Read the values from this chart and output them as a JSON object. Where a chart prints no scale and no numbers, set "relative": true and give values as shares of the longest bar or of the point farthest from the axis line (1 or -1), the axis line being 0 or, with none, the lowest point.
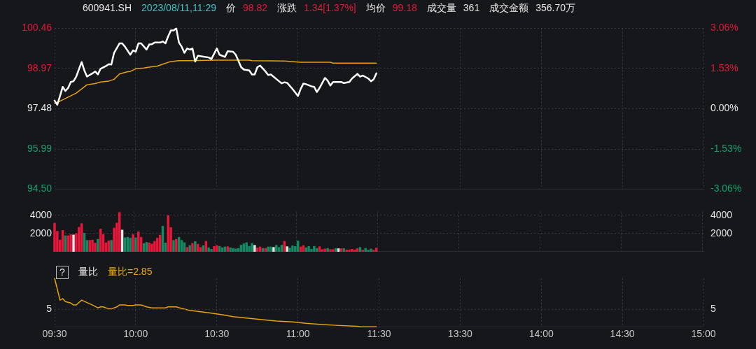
{
  "chart_data": [
    {
      "type": "line",
      "title": "600941.SH",
      "annotations": [
        "2023/08/11,11:29",
        "价 98.82",
        "涨跌 1.34[1.37%]",
        "均价 99.18",
        "成交量 361",
        "成交金额 356.70万"
      ],
      "categories": [
        null,
        null,
        null,
        null,
        null,
        null,
        null,
        null,
        null,
        null,
        null,
        null,
        null,
        null,
        null,
        null,
        null,
        null,
        null,
        null,
        null,
        null,
        null,
        null,
        null,
        null,
        null,
        null,
        null,
        null,
        null,
        null,
        null,
        null,
        null,
        null,
        null,
        null,
        null,
        null,
        null,
        null,
        null,
        null,
        null,
        null,
        null,
        null,
        null,
        null,
        null,
        null,
        null,
        null,
        null,
        null,
        null,
        null,
        null,
        null,
        null,
        null,
        null,
        null,
        null,
        null,
        null,
        null,
        null,
        null,
        null,
        null,
        null,
        null,
        null,
        null,
        null,
        null,
        null,
        null,
        null,
        null,
        null,
        null,
        null,
        null,
        null,
        null,
        null,
        null,
        null,
        null,
        null,
        null,
        null,
        null,
        null,
        null,
        null,
        null,
        null,
        null,
        null,
        null,
        null,
        null,
        null,
        null,
        null,
        null,
        null,
        null,
        null,
        null,
        null,
        null,
        null,
        null,
        null,
        null,
        null,
        null,
        null,
        null,
        null,
        null,
        null,
        null,
        null,
        null,
        null,
        null,
        null,
        null,
        null,
        null,
        null,
        null,
        null,
        null,
        null,
        null,
        null,
        null,
        null,
        null,
        null,
        null,
        null,
        null,
        null,
        null,
        null,
        null,
        null,
        null,
        null,
        null,
        null,
        null,
        null,
        null,
        null,
        null,
        null,
        null,
        null,
        null,
        null,
        null,
        null,
        null,
        null,
        null,
        null,
        null,
        null,
        null,
        null,
        null,
        null,
        null,
        null,
        null,
        null,
        null,
        null,
        null,
        null,
        null,
        null,
        null,
        null,
        null,
        null,
        null,
        null,
        null,
        null,
        null,
        null,
        null,
        null,
        null,
        null,
        null,
        null,
        null,
        null,
        null,
        null,
        null,
        null,
        null,
        null,
        null,
        null,
        null,
        null,
        null,
        null,
        null,
        null,
        null,
        null,
        null,
        null,
        null,
        null,
        null,
        null,
        null,
        null,
        null,
        null,
        null,
        null,
        null,
        null,
        null,
        null
      ],
      "ylim": [
        94.5,
        100.46
      ],
      "yticks": [
        {
          "value": 94.5,
          "label": "94.50"
        },
        95.99,
        97.48,
        98.97,
        100.46
      ],
      "y2lim": [
        -3.06,
        3.06
      ],
      "y2ticks": [
        {
          "value": -3.06,
          "label": "-3.06%"
        },
        {
          "value": -1.53,
          "label": "-1.53%"
        },
        {
          "value": 0,
          "label": "0.00%"
        },
        {
          "value": 1.53,
          "label": "1.53%"
        },
        {
          "value": 3.06,
          "label": "3.06%"
        }
      ],
      "tick_labels": "y",
      "grid": true,
      "marker": "none",
      "line_style": "solid",
      "series": [
        {
          "color": "#ffffff",
          "values": [
            97.78,
            97.63,
            97.95,
            98.29,
            98.14,
            98.25,
            98.47,
            98.5,
            98.67,
            null,
            99.21,
            98.9,
            98.67,
            null,
            98.79,
            98.86,
            98.75,
            98.96,
            null,
            99.06,
            99.13,
            99.12,
            99.55,
            null,
            99.9,
            99.9,
            99.78,
            null,
            99.48,
            99.64,
            99.59,
            99.9,
            99.9,
            null,
            99.67,
            99.86,
            99.87,
            99.93,
            null,
            99.93,
            99.97,
            99.9,
            100.16,
            100.38,
            100.38,
            100.45,
            99.93,
            99.78,
            99.55,
            99.71,
            99.67,
            99.71,
            99.23,
            99.44,
            null,
            99.41,
            null,
            99.38,
            99.32,
            null,
            99.71,
            99.48,
            null,
            99.4,
            99.61,
            null,
            99.59,
            99.48,
            null,
            99.02,
            98.93,
            null,
            98.9,
            98.75,
            98.75,
            99.02,
            99.08,
            null,
            98.86,
            98.73,
            98.75,
            null,
            null,
            98.5,
            98.42,
            98.46,
            98.44,
            null,
            98.21,
            null,
            97.95,
            98.21,
            98.41,
            98.39,
            null,
            98.31,
            98.29,
            98.1,
            98.25,
            null,
            98.62,
            98.52,
            98.34,
            98.47,
            null,
            null,
            98.47,
            98.43,
            null,
            98.47,
            98.6,
            null,
            98.77,
            98.67,
            98.71,
            null,
            98.6,
            98.5,
            98.57,
            98.79,
            null,
            null,
            null,
            null,
            null,
            null,
            null,
            null,
            null,
            null,
            null,
            null,
            null,
            null,
            null,
            null,
            null,
            null,
            null,
            null,
            null,
            null,
            null,
            null,
            null,
            null,
            null,
            null,
            null,
            null,
            null,
            null,
            null,
            null,
            null,
            null,
            null,
            null,
            null,
            null,
            null,
            null,
            null,
            null,
            null,
            null,
            null,
            null,
            null,
            null,
            null,
            null,
            null,
            null,
            null,
            null,
            null,
            null,
            null,
            null,
            null,
            null,
            null,
            null,
            null,
            null,
            null,
            null,
            null,
            null,
            null,
            null,
            null,
            null,
            null,
            null,
            null,
            null,
            null,
            null,
            null,
            null,
            null,
            null,
            null,
            null,
            null,
            null,
            null,
            null,
            null,
            null,
            null,
            null,
            null,
            null,
            null,
            null,
            null,
            null,
            null,
            null,
            null,
            null,
            null,
            null,
            null,
            null,
            null,
            null,
            null,
            null,
            null,
            null,
            null,
            null,
            null,
            null,
            null,
            null,
            null
          ]
        },
        {
          "color": "#e9a20c",
          "values": [
            97.68,
            null,
            97.76,
            null,
            null,
            97.91,
            null,
            null,
            98.06,
            null,
            null,
            98.29,
            98.37,
            null,
            null,
            98.41,
            null,
            98.47,
            null,
            null,
            98.5,
            null,
            98.57,
            null,
            98.77,
            null,
            null,
            98.85,
            98.86,
            null,
            98.96,
            null,
            null,
            98.99,
            null,
            99.02,
            null,
            null,
            99.06,
            null,
            99.13,
            null,
            null,
            99.23,
            null,
            null,
            99.26,
            null,
            null,
            null,
            99.26,
            null,
            null,
            null,
            null,
            null,
            null,
            null,
            null,
            99.28,
            null,
            null,
            null,
            null,
            null,
            null,
            null,
            null,
            null,
            null,
            null,
            null,
            99.28,
            99.26,
            null,
            null,
            null,
            null,
            null,
            null,
            null,
            null,
            null,
            null,
            null,
            99.25,
            null,
            null,
            null,
            null,
            null,
            99.2,
            null,
            null,
            null,
            null,
            null,
            null,
            null,
            null,
            null,
            null,
            99.2,
            99.17,
            null,
            null,
            null,
            null,
            null,
            null,
            null,
            null,
            null,
            null,
            null,
            null,
            null,
            null,
            null,
            99.17,
            null,
            null,
            null,
            null,
            null,
            null,
            null,
            null,
            null,
            null,
            null,
            null,
            null,
            null,
            null,
            null,
            null,
            null,
            null,
            null,
            null,
            null,
            null,
            null,
            null,
            null,
            null,
            null,
            null,
            null,
            null,
            null,
            null,
            null,
            null,
            null,
            null,
            null,
            null,
            null,
            null,
            null,
            null,
            null,
            null,
            null,
            null,
            null,
            null,
            null,
            null,
            null,
            null,
            null,
            null,
            null,
            null,
            null,
            null,
            null,
            null,
            null,
            null,
            null,
            null,
            null,
            null,
            null,
            null,
            null,
            null,
            null,
            null,
            null,
            null,
            null,
            null,
            null,
            null,
            null,
            null,
            null,
            null,
            null,
            null,
            null,
            null,
            null,
            null,
            null,
            null,
            null,
            null,
            null,
            null,
            null,
            null,
            null,
            null,
            null,
            null,
            null,
            null,
            null,
            null,
            null,
            null,
            null,
            null,
            null,
            null,
            null,
            null,
            null,
            null,
            null,
            null,
            null,
            null,
            null,
            null
          ]
        }
      ]
    },
    {
      "type": "bar",
      "categories": [
        null,
        null,
        null,
        null,
        null,
        null,
        null,
        null,
        null,
        null,
        null,
        null,
        null,
        null,
        null,
        null,
        null,
        null,
        null,
        null,
        null,
        null,
        null,
        null,
        null,
        null,
        null,
        null,
        null,
        null,
        null,
        null,
        null,
        null,
        null,
        null,
        null,
        null,
        null,
        null,
        null,
        null,
        null,
        null,
        null,
        null,
        null,
        null,
        null,
        null,
        null,
        null,
        null,
        null,
        null,
        null,
        null,
        null,
        null,
        null,
        null,
        null,
        null,
        null,
        null,
        null,
        null,
        null,
        null,
        null,
        null,
        null,
        null,
        null,
        null,
        null,
        null,
        null,
        null,
        null,
        null,
        null,
        null,
        null,
        null,
        null,
        null,
        null,
        null,
        null,
        null,
        null,
        null,
        null,
        null,
        null,
        null,
        null,
        null,
        null,
        null,
        null,
        null,
        null,
        null,
        null,
        null,
        null,
        null,
        null,
        null,
        null,
        null,
        null,
        null,
        null,
        null,
        null,
        null,
        null,
        null,
        null,
        null,
        null,
        null,
        null,
        null,
        null,
        null,
        null,
        null,
        null,
        null,
        null,
        null,
        null,
        null,
        null,
        null,
        null,
        null,
        null,
        null,
        null,
        null,
        null,
        null,
        null,
        null,
        null,
        null,
        null,
        null,
        null,
        null,
        null,
        null,
        null,
        null,
        null,
        null,
        null,
        null,
        null,
        null,
        null,
        null,
        null,
        null,
        null,
        null,
        null,
        null,
        null,
        null,
        null,
        null,
        null,
        null,
        null,
        null,
        null,
        null,
        null,
        null,
        null,
        null,
        null,
        null,
        null,
        null,
        null,
        null,
        null,
        null,
        null,
        null,
        null,
        null,
        null,
        null,
        null,
        null,
        null,
        null,
        null,
        null,
        null,
        null,
        null,
        null,
        null,
        null,
        null,
        null,
        null,
        null,
        null,
        null,
        null,
        null,
        null,
        null,
        null,
        null,
        null,
        null,
        null,
        null,
        null,
        null,
        null,
        null,
        null,
        null,
        null,
        null,
        null,
        null,
        null,
        null
      ],
      "ylim": [
        0,
        4330
      ],
      "yticks": [
        2000,
        4000
      ],
      "y2lim": [
        0,
        4330
      ],
      "y2ticks": [
        2000,
        4000
      ],
      "tick_labels": "y",
      "grid": true,
      "values": [
        3130,
        2230,
        1270,
        2330,
        1740,
        1740,
        1860,
        1830,
        1980,
        2670,
        3080,
        2030,
        1230,
        1230,
        1270,
        930,
        1350,
        2480,
        1890,
        960,
        1180,
        1230,
        2590,
        3140,
        4310,
        2370,
        1520,
        1570,
        1470,
        1860,
        1520,
        2180,
        1570,
        880,
        1010,
        960,
        830,
        1130,
        1470,
        1810,
        2790,
        950,
        3970,
        2640,
        1230,
        1350,
        1570,
        1230,
        980,
        460,
        660,
        910,
        1100,
        810,
        460,
        660,
        1130,
        420,
        250,
        560,
        660,
        570,
        420,
        510,
        540,
        420,
        350,
        290,
        350,
        710,
        860,
        980,
        570,
        900,
        690,
        390,
        510,
        350,
        350,
        510,
        510,
        460,
        690,
        460,
        710,
        1120,
        540,
        390,
        630,
        560,
        1170,
        510,
        660,
        420,
        560,
        250,
        570,
        350,
        540,
        220,
        290,
        350,
        220,
        220,
        350,
        320,
        320,
        320,
        190,
        190,
        250,
        190,
        320,
        460,
        150,
        350,
        150,
        290,
        150,
        390,
        null,
        null,
        null,
        null,
        null,
        null,
        null,
        null,
        null,
        null,
        null,
        null,
        null,
        null,
        null,
        null,
        null,
        null,
        null,
        null,
        null,
        null,
        null,
        null,
        null,
        null,
        null,
        null,
        null,
        null,
        null,
        null,
        null,
        null,
        null,
        null,
        null,
        null,
        null,
        null,
        null,
        null,
        null,
        null,
        null,
        null,
        null,
        null,
        null,
        null,
        null,
        null,
        null,
        null,
        null,
        null,
        null,
        null,
        null,
        null,
        null,
        null,
        null,
        null,
        null,
        null,
        null,
        null,
        null,
        null,
        null,
        null,
        null,
        null,
        null,
        null,
        null,
        null,
        null,
        null,
        null,
        null,
        null,
        null,
        null,
        null,
        null,
        null,
        null,
        null,
        null,
        null,
        null,
        null,
        null,
        null,
        null,
        null,
        null,
        null,
        null,
        null,
        null,
        null,
        null,
        null,
        null,
        null,
        null,
        null,
        null,
        null,
        null,
        null,
        null,
        null,
        null,
        null,
        null,
        null,
        null
      ],
      "colors": [
        "#e8173a",
        "#e8173a",
        "#e8173a",
        "#e8173a",
        "#138a62",
        "#e8173a",
        "#e8173a",
        "#e6e6e6",
        "#e8173a",
        "#e8173a",
        "#e8173a",
        "#138a62",
        "#138a62",
        "#e8173a",
        "#e8173a",
        "#e8173a",
        "#138a62",
        "#e8173a",
        "#e8173a",
        "#e8173a",
        "#e8173a",
        "#138a62",
        "#e8173a",
        "#e8173a",
        "#e8173a",
        "#e6e6e6",
        "#138a62",
        "#138a62",
        "#138a62",
        "#e8173a",
        "#138a62",
        "#e8173a",
        "#e8173a",
        "#138a62",
        "#138a62",
        "#e8173a",
        "#e8173a",
        "#e8173a",
        "#e8173a",
        "#e8173a",
        "#138a62",
        "#138a62",
        "#e8173a",
        "#e8173a",
        "#138a62",
        "#e8173a",
        "#138a62",
        "#138a62",
        "#138a62",
        "#e8173a",
        "#138a62",
        "#e8173a",
        "#138a62",
        "#e8173a",
        "#e8173a",
        "#138a62",
        "#e8173a",
        "#138a62",
        "#138a62",
        "#e8173a",
        "#e8173a",
        "#138a62",
        "#138a62",
        "#138a62",
        "#e8173a",
        "#138a62",
        "#138a62",
        "#138a62",
        "#138a62",
        "#138a62",
        "#138a62",
        "#138a62",
        "#138a62",
        "#138a62",
        "#e6e6e6",
        "#e8173a",
        "#e8173a",
        "#138a62",
        "#e8173a",
        "#138a62",
        "#138a62",
        "#e6e6e6",
        "#138a62",
        "#138a62",
        "#138a62",
        "#e8173a",
        "#e6e6e6",
        "#138a62",
        "#138a62",
        "#138a62",
        "#138a62",
        "#e8173a",
        "#e8173a",
        "#138a62",
        "#138a62",
        "#138a62",
        "#138a62",
        "#138a62",
        "#e8173a",
        "#e8173a",
        "#e8173a",
        "#138a62",
        "#e8173a",
        "#e8173a",
        "#138a62",
        "#e6e6e6",
        "#e8173a",
        "#138a62",
        "#e8173a",
        "#e8173a",
        "#e8173a",
        "#e8173a",
        "#e8173a",
        "#138a62",
        "#e8173a",
        "#138a62",
        "#138a62",
        "#138a62",
        "#e8173a",
        "#e8173a",
        null,
        null,
        null,
        null,
        null,
        null,
        null,
        null,
        null,
        null,
        null,
        null,
        null,
        null,
        null,
        null,
        null,
        null,
        null,
        null,
        null,
        null,
        null,
        null,
        null,
        null,
        null,
        null,
        null,
        null,
        null,
        null,
        null,
        null,
        null,
        null,
        null,
        null,
        null,
        null,
        null,
        null,
        null,
        null,
        null,
        null,
        null,
        null,
        null,
        null,
        null,
        null,
        null,
        null,
        null,
        null,
        null,
        null,
        null,
        null,
        null,
        null,
        null,
        null,
        null,
        null,
        null,
        null,
        null,
        null,
        null,
        null,
        null,
        null,
        null,
        null,
        null,
        null,
        null,
        null,
        null,
        null,
        null,
        null,
        null,
        null,
        null,
        null,
        null,
        null,
        null,
        null,
        null,
        null,
        null,
        null,
        null,
        null,
        null,
        null,
        null,
        null,
        null,
        null,
        null,
        null,
        null,
        null,
        null,
        null,
        null,
        null,
        null,
        null,
        null,
        null,
        null,
        null,
        null,
        null,
        null
      ]
    },
    {
      "type": "line",
      "title": "量比",
      "annotations": [
        "?",
        "量比=2.85",
        "5",
        "5"
      ],
      "relative": true,
      "ref_lines": [
        {
          "axis": "y",
          "value": 0.36
        }
      ],
      "categories": [
        "09:30",
        null,
        null,
        null,
        null,
        null,
        null,
        null,
        null,
        null,
        null,
        null,
        null,
        null,
        null,
        null,
        null,
        null,
        null,
        null,
        null,
        null,
        null,
        null,
        null,
        null,
        null,
        null,
        null,
        null,
        "10:00",
        null,
        null,
        null,
        null,
        null,
        null,
        null,
        null,
        null,
        null,
        null,
        null,
        null,
        null,
        null,
        null,
        null,
        null,
        null,
        null,
        null,
        null,
        null,
        null,
        null,
        null,
        null,
        null,
        null,
        "10:30",
        null,
        null,
        null,
        null,
        null,
        null,
        null,
        null,
        null,
        null,
        null,
        null,
        null,
        null,
        null,
        null,
        null,
        null,
        null,
        null,
        null,
        null,
        null,
        null,
        null,
        null,
        null,
        null,
        null,
        "11:00",
        null,
        null,
        null,
        null,
        null,
        null,
        null,
        null,
        null,
        null,
        null,
        null,
        null,
        null,
        null,
        null,
        null,
        null,
        null,
        null,
        null,
        null,
        null,
        null,
        null,
        null,
        null,
        null,
        null,
        "11:30",
        null,
        null,
        null,
        null,
        null,
        null,
        null,
        null,
        null,
        null,
        null,
        null,
        null,
        null,
        null,
        null,
        null,
        null,
        null,
        null,
        null,
        null,
        null,
        null,
        null,
        null,
        null,
        null,
        null,
        "13:30",
        null,
        null,
        null,
        null,
        null,
        null,
        null,
        null,
        null,
        null,
        null,
        null,
        null,
        null,
        null,
        null,
        null,
        null,
        null,
        null,
        null,
        null,
        null,
        null,
        null,
        null,
        null,
        null,
        null,
        "14:00",
        null,
        null,
        null,
        null,
        null,
        null,
        null,
        null,
        null,
        null,
        null,
        null,
        null,
        null,
        null,
        null,
        null,
        null,
        null,
        null,
        null,
        null,
        null,
        null,
        null,
        null,
        null,
        null,
        null,
        "14:30",
        null,
        null,
        null,
        null,
        null,
        null,
        null,
        null,
        null,
        null,
        null,
        null,
        null,
        null,
        null,
        null,
        null,
        null,
        null,
        null,
        null,
        null,
        null,
        null,
        null,
        null,
        null,
        null,
        null,
        "15:00"
      ],
      "grid": "x",
      "marker": "none",
      "line_style": "solid",
      "series": [
        {
          "color": "#e9a20c",
          "values": [
            1,
            0.78,
            0.55,
            0.58,
            0.52,
            null,
            0.49,
            0.45,
            0.45,
            null,
            0.55,
            null,
            0.5,
            null,
            0.45,
            null,
            0.39,
            0.41,
            0.41,
            null,
            0.37,
            0.37,
            null,
            0.41,
            0.45,
            null,
            0.45,
            0.44,
            null,
            0.44,
            0.45,
            null,
            0.45,
            null,
            0.41,
            null,
            0.39,
            null,
            null,
            null,
            null,
            0.39,
            0.41,
            null,
            null,
            0.41,
            null,
            0.38,
            null,
            null,
            0.34,
            null,
            null,
            null,
            0.31,
            null,
            null,
            null,
            0.28,
            null,
            null,
            null,
            0.25,
            null,
            null,
            null,
            0.21,
            null,
            null,
            null,
            null,
            0.18,
            null,
            null,
            null,
            null,
            0.15,
            null,
            null,
            null,
            null,
            null,
            0.12,
            null,
            null,
            null,
            null,
            null,
            0.1,
            null,
            null,
            null,
            null,
            0.07,
            null,
            null,
            null,
            null,
            0.05,
            null,
            null,
            null,
            null,
            null,
            0.03,
            null,
            null,
            null,
            null,
            null,
            null,
            null,
            0.01,
            0,
            null,
            null,
            null,
            null,
            null,
            0,
            null,
            null,
            null,
            null,
            null,
            null,
            null,
            null,
            null,
            null,
            null,
            null,
            null,
            null,
            null,
            null,
            null,
            null,
            null,
            null,
            null,
            null,
            null,
            null,
            null,
            null,
            null,
            null,
            null,
            null,
            null,
            null,
            null,
            null,
            null,
            null,
            null,
            null,
            null,
            null,
            null,
            null,
            null,
            null,
            null,
            null,
            null,
            null,
            null,
            null,
            null,
            null,
            null,
            null,
            null,
            null,
            null,
            null,
            null,
            null,
            null,
            null,
            null,
            null,
            null,
            null,
            null,
            null,
            null,
            null,
            null,
            null,
            null,
            null,
            null,
            null,
            null,
            null,
            null,
            null,
            null,
            null,
            null,
            null,
            null,
            null,
            null,
            null,
            null,
            null,
            null,
            null,
            null,
            null,
            null,
            null,
            null,
            null,
            null,
            null,
            null,
            null,
            null,
            null,
            null,
            null,
            null,
            null,
            null,
            null,
            null,
            null,
            null,
            null,
            null,
            null,
            null,
            null,
            null,
            null,
            null
          ]
        }
      ]
    }
  ]
}
